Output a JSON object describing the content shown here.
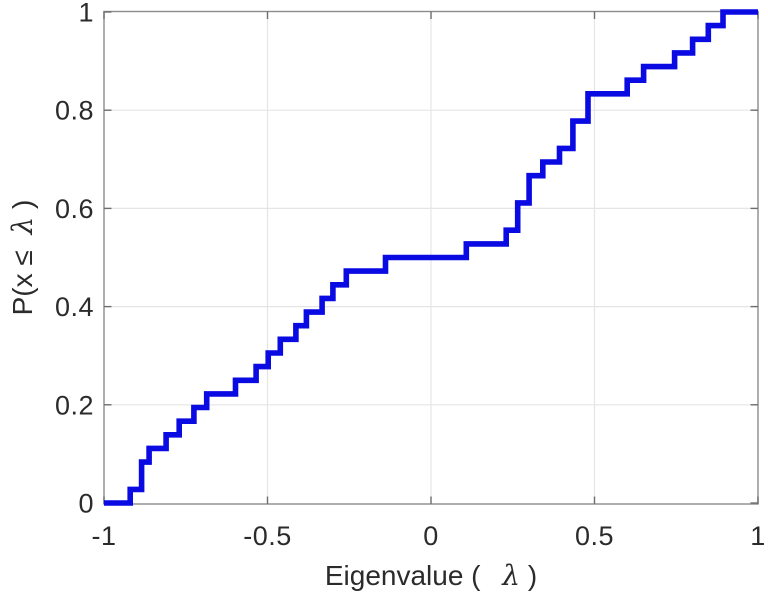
{
  "chart_data": {
    "type": "line",
    "subtype": "ecdf-stairs",
    "title": "",
    "xlabel": {
      "pre": "Eigenvalue (",
      "symbol": "λ",
      "post": ")"
    },
    "ylabel": {
      "pre": "P(x ≤",
      "symbol": "λ",
      "post": ")"
    },
    "xlim": [
      -1,
      1
    ],
    "ylim": [
      0,
      1
    ],
    "xticks": {
      "values": [
        -1,
        -0.5,
        0,
        0.5,
        1
      ],
      "labels": [
        "-1",
        "-0.5",
        "0",
        "0.5",
        "1"
      ]
    },
    "yticks": {
      "values": [
        0,
        0.2,
        0.4,
        0.6,
        0.8,
        1
      ],
      "labels": [
        "0",
        "0.2",
        "0.4",
        "0.6",
        "0.8",
        "1"
      ]
    },
    "grid": {
      "enabled": true,
      "x_gridlines": [
        -0.5,
        0,
        0.5
      ],
      "y_gridlines": [
        0.2,
        0.4,
        0.6,
        0.8
      ]
    },
    "legend": "none",
    "n_samples": 36,
    "samples": [
      -0.92,
      -0.885,
      -0.885,
      -0.862,
      -0.81,
      -0.77,
      -0.725,
      -0.686,
      -0.598,
      -0.535,
      -0.498,
      -0.461,
      -0.413,
      -0.381,
      -0.333,
      -0.3,
      -0.259,
      -0.139,
      0.108,
      0.23,
      0.265,
      0.265,
      0.3,
      0.3,
      0.342,
      0.393,
      0.434,
      0.434,
      0.48,
      0.48,
      0.6,
      0.65,
      0.745,
      0.8,
      0.848,
      0.893
    ],
    "curve_start_x": -1,
    "curve_end_x": 1,
    "colors": {
      "line": "#0a0ae2",
      "frame": "#8c8c8c",
      "gridline": "#e5e5e5",
      "tick": "#6e6e6e",
      "text": "#2b2b2b",
      "background": "#ffffff"
    },
    "line_width": 5.6
  }
}
